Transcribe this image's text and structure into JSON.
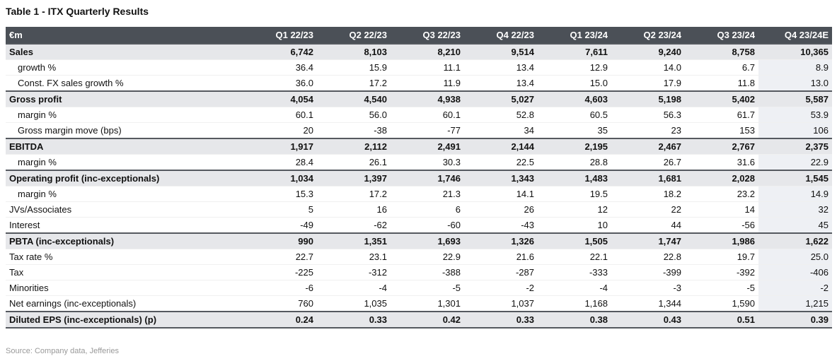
{
  "title": "Table 1 - ITX Quarterly Results",
  "table": {
    "header": [
      "€m",
      "Q1 22/23",
      "Q2 22/23",
      "Q3 22/23",
      "Q4 22/23",
      "Q1 23/24",
      "Q2 23/24",
      "Q3 23/24",
      "Q4 23/24E"
    ],
    "rows": [
      {
        "label": "Sales",
        "bold": true,
        "values": [
          "6,742",
          "8,103",
          "8,210",
          "9,514",
          "7,611",
          "9,240",
          "8,758",
          "10,365"
        ]
      },
      {
        "label": "growth %",
        "indent": true,
        "values": [
          "36.4",
          "15.9",
          "11.1",
          "13.4",
          "12.9",
          "14.0",
          "6.7",
          "8.9"
        ]
      },
      {
        "label": "Const. FX sales growth %",
        "indent": true,
        "values": [
          "36.0",
          "17.2",
          "11.9",
          "13.4",
          "15.0",
          "17.9",
          "11.8",
          "13.0"
        ]
      },
      {
        "label": "Gross profit",
        "bold": true,
        "values": [
          "4,054",
          "4,540",
          "4,938",
          "5,027",
          "4,603",
          "5,198",
          "5,402",
          "5,587"
        ]
      },
      {
        "label": "margin %",
        "indent": true,
        "values": [
          "60.1",
          "56.0",
          "60.1",
          "52.8",
          "60.5",
          "56.3",
          "61.7",
          "53.9"
        ]
      },
      {
        "label": "Gross margin move (bps)",
        "indent": true,
        "values": [
          "20",
          "-38",
          "-77",
          "34",
          "35",
          "23",
          "153",
          "106"
        ]
      },
      {
        "label": "EBITDA",
        "bold": true,
        "values": [
          "1,917",
          "2,112",
          "2,491",
          "2,144",
          "2,195",
          "2,467",
          "2,767",
          "2,375"
        ]
      },
      {
        "label": "margin %",
        "indent": true,
        "values": [
          "28.4",
          "26.1",
          "30.3",
          "22.5",
          "28.8",
          "26.7",
          "31.6",
          "22.9"
        ]
      },
      {
        "label": "Operating profit (inc-exceptionals)",
        "bold": true,
        "values": [
          "1,034",
          "1,397",
          "1,746",
          "1,343",
          "1,483",
          "1,681",
          "2,028",
          "1,545"
        ]
      },
      {
        "label": "margin %",
        "indent": true,
        "values": [
          "15.3",
          "17.2",
          "21.3",
          "14.1",
          "19.5",
          "18.2",
          "23.2",
          "14.9"
        ]
      },
      {
        "label": "JVs/Associates",
        "values": [
          "5",
          "16",
          "6",
          "26",
          "12",
          "22",
          "14",
          "32"
        ]
      },
      {
        "label": "Interest",
        "values": [
          "-49",
          "-62",
          "-60",
          "-43",
          "10",
          "44",
          "-56",
          "45"
        ]
      },
      {
        "label": "PBTA (inc-exceptionals)",
        "bold": true,
        "values": [
          "990",
          "1,351",
          "1,693",
          "1,326",
          "1,505",
          "1,747",
          "1,986",
          "1,622"
        ]
      },
      {
        "label": "Tax rate %",
        "values": [
          "22.7",
          "23.1",
          "22.9",
          "21.6",
          "22.1",
          "22.8",
          "19.7",
          "25.0"
        ]
      },
      {
        "label": "Tax",
        "values": [
          "-225",
          "-312",
          "-388",
          "-287",
          "-333",
          "-399",
          "-392",
          "-406"
        ]
      },
      {
        "label": "Minorities",
        "values": [
          "-6",
          "-4",
          "-5",
          "-2",
          "-4",
          "-3",
          "-5",
          "-2"
        ]
      },
      {
        "label": "Net earnings (inc-exceptionals)",
        "values": [
          "760",
          "1,035",
          "1,301",
          "1,037",
          "1,168",
          "1,344",
          "1,590",
          "1,215"
        ]
      },
      {
        "label": "Diluted EPS (inc-exceptionals) (p)",
        "bold": true,
        "values": [
          "0.24",
          "0.33",
          "0.42",
          "0.33",
          "0.38",
          "0.43",
          "0.51",
          "0.39"
        ]
      }
    ]
  },
  "source": "Source: Company data, Jefferies"
}
